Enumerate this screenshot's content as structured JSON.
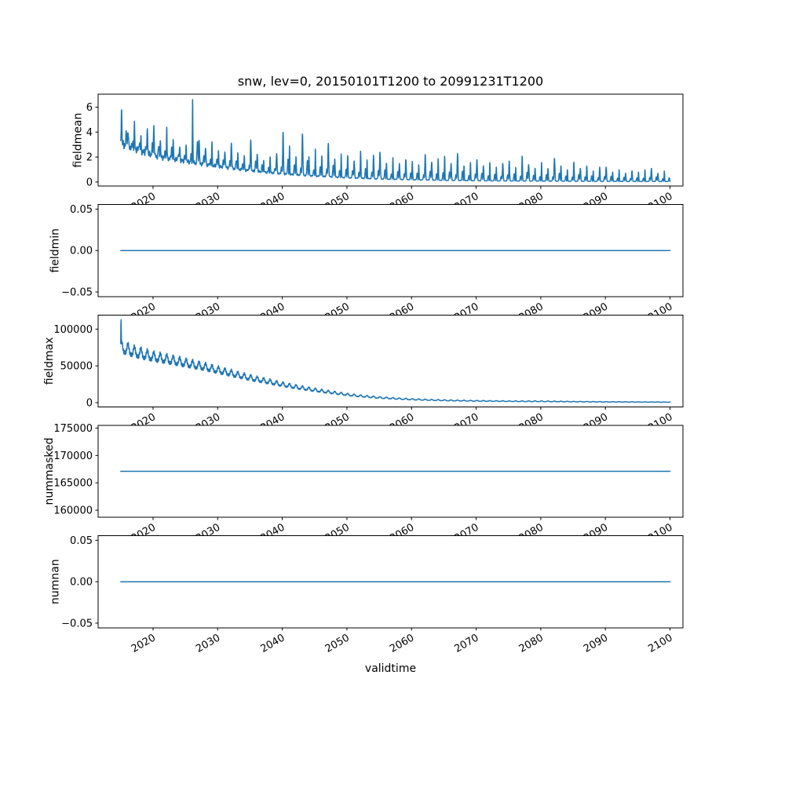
{
  "figure": {
    "title": "snw, lev=0, 20150101T1200 to 20991231T1200",
    "xlabel": "validtime"
  },
  "chart_data": {
    "type": "line",
    "title": "snw, lev=0, 20150101T1200 to 20991231T1200",
    "xlabel": "validtime",
    "line_color": "#1f77b4",
    "background": "#ffffff",
    "grid": false,
    "legend": "none",
    "xlim": [
      2011.5,
      2102.0
    ],
    "x_range_data": [
      2015.0,
      2100.0
    ],
    "x_ticks": [
      2020,
      2030,
      2040,
      2050,
      2060,
      2070,
      2080,
      2090,
      2100
    ],
    "x_tick_labels": [
      "2020",
      "2030",
      "2040",
      "2050",
      "2060",
      "2070",
      "2080",
      "2090",
      "2100"
    ],
    "subplots": [
      {
        "name": "fieldmean",
        "ylabel": "fieldmean",
        "model": "seasonal_decay",
        "ylim": [
          -0.335,
          7.035
        ],
        "yticks": [
          0,
          2,
          4,
          6
        ],
        "ytick_labels": [
          "0",
          "2",
          "4",
          "6"
        ],
        "base_keypoints": [
          [
            2015,
            3.1
          ],
          [
            2020,
            2.1
          ],
          [
            2025,
            1.65
          ],
          [
            2030,
            1.25
          ],
          [
            2035,
            0.9
          ],
          [
            2040,
            0.65
          ],
          [
            2045,
            0.48
          ],
          [
            2050,
            0.34
          ],
          [
            2055,
            0.24
          ],
          [
            2060,
            0.18
          ],
          [
            2065,
            0.13
          ],
          [
            2070,
            0.1
          ],
          [
            2075,
            0.08
          ],
          [
            2080,
            0.07
          ],
          [
            2085,
            0.06
          ],
          [
            2090,
            0.05
          ],
          [
            2095,
            0.04
          ],
          [
            2100,
            0.04
          ]
        ],
        "peaks_by_year": [
          6.0,
          4.1,
          4.6,
          3.7,
          4.4,
          4.5,
          3.4,
          4.5,
          3.2,
          2.8,
          3.1,
          6.7,
          3.4,
          2.7,
          3.1,
          2.6,
          2.5,
          3.1,
          2.4,
          2.1,
          3.3,
          2.3,
          1.8,
          2.0,
          2.3,
          4.0,
          2.9,
          2.1,
          3.9,
          2.0,
          2.7,
          2.1,
          3.1,
          1.9,
          2.3,
          2.1,
          1.7,
          2.5,
          1.8,
          2.2,
          2.4,
          1.5,
          2.0,
          1.5,
          1.8,
          1.7,
          1.4,
          2.2,
          1.6,
          1.9,
          2.1,
          1.5,
          2.3,
          1.3,
          1.6,
          1.8,
          1.3,
          1.6,
          1.2,
          1.5,
          1.7,
          1.2,
          2.1,
          1.4,
          1.1,
          1.6,
          1.1,
          1.9,
          1.3,
          1.0,
          1.6,
          1.1,
          1.3,
          0.9,
          1.2,
          1.2,
          0.8,
          1.0,
          0.7,
          0.9,
          0.8,
          1.0,
          1.1,
          0.7,
          0.9
        ]
      },
      {
        "name": "fieldmin",
        "ylabel": "fieldmin",
        "model": "constant",
        "value": 0.0,
        "ylim": [
          -0.0555,
          0.0555
        ],
        "yticks": [
          -0.05,
          0.0,
          0.05
        ],
        "ytick_labels": [
          "−0.05",
          "0.00",
          "0.05"
        ]
      },
      {
        "name": "fieldmax",
        "ylabel": "fieldmax",
        "model": "decay_osc",
        "initial_spike": 113500,
        "ylim": [
          -5900,
          119300
        ],
        "yticks": [
          0,
          50000,
          100000
        ],
        "ytick_labels": [
          "0",
          "50000",
          "100000"
        ],
        "base_keypoints": [
          [
            2015,
            70000
          ],
          [
            2017,
            64000
          ],
          [
            2020,
            58000
          ],
          [
            2022,
            55000
          ],
          [
            2025,
            50000
          ],
          [
            2028,
            45000
          ],
          [
            2030,
            41000
          ],
          [
            2032,
            37000
          ],
          [
            2035,
            31000
          ],
          [
            2038,
            26000
          ],
          [
            2040,
            22500
          ],
          [
            2042,
            19500
          ],
          [
            2045,
            15500
          ],
          [
            2048,
            12000
          ],
          [
            2050,
            9800
          ],
          [
            2052,
            8000
          ],
          [
            2055,
            6000
          ],
          [
            2058,
            4600
          ],
          [
            2060,
            3800
          ],
          [
            2063,
            3000
          ],
          [
            2065,
            2600
          ],
          [
            2068,
            2100
          ],
          [
            2070,
            1900
          ],
          [
            2075,
            1500
          ],
          [
            2080,
            1300
          ],
          [
            2085,
            1000
          ],
          [
            2090,
            800
          ],
          [
            2095,
            600
          ],
          [
            2100,
            500
          ]
        ],
        "amp_keypoints": [
          [
            2015,
            14000
          ],
          [
            2020,
            11000
          ],
          [
            2025,
            9500
          ],
          [
            2030,
            8000
          ],
          [
            2035,
            6500
          ],
          [
            2040,
            5200
          ],
          [
            2045,
            4000
          ],
          [
            2050,
            2800
          ],
          [
            2055,
            2000
          ],
          [
            2060,
            1600
          ],
          [
            2065,
            1300
          ],
          [
            2070,
            1100
          ],
          [
            2075,
            900
          ],
          [
            2080,
            1100
          ],
          [
            2085,
            700
          ],
          [
            2090,
            600
          ],
          [
            2095,
            450
          ],
          [
            2100,
            350
          ]
        ]
      },
      {
        "name": "nummasked",
        "ylabel": "nummasked",
        "model": "constant",
        "value": 167100,
        "ylim": [
          158700,
          175500
        ],
        "yticks": [
          160000,
          165000,
          170000,
          175000
        ],
        "ytick_labels": [
          "160000",
          "165000",
          "170000",
          "175000"
        ]
      },
      {
        "name": "numnan",
        "ylabel": "numnan",
        "model": "constant",
        "value": 0.0,
        "ylim": [
          -0.0555,
          0.0555
        ],
        "yticks": [
          -0.05,
          0.0,
          0.05
        ],
        "ytick_labels": [
          "−0.05",
          "0.00",
          "0.05"
        ]
      }
    ]
  }
}
